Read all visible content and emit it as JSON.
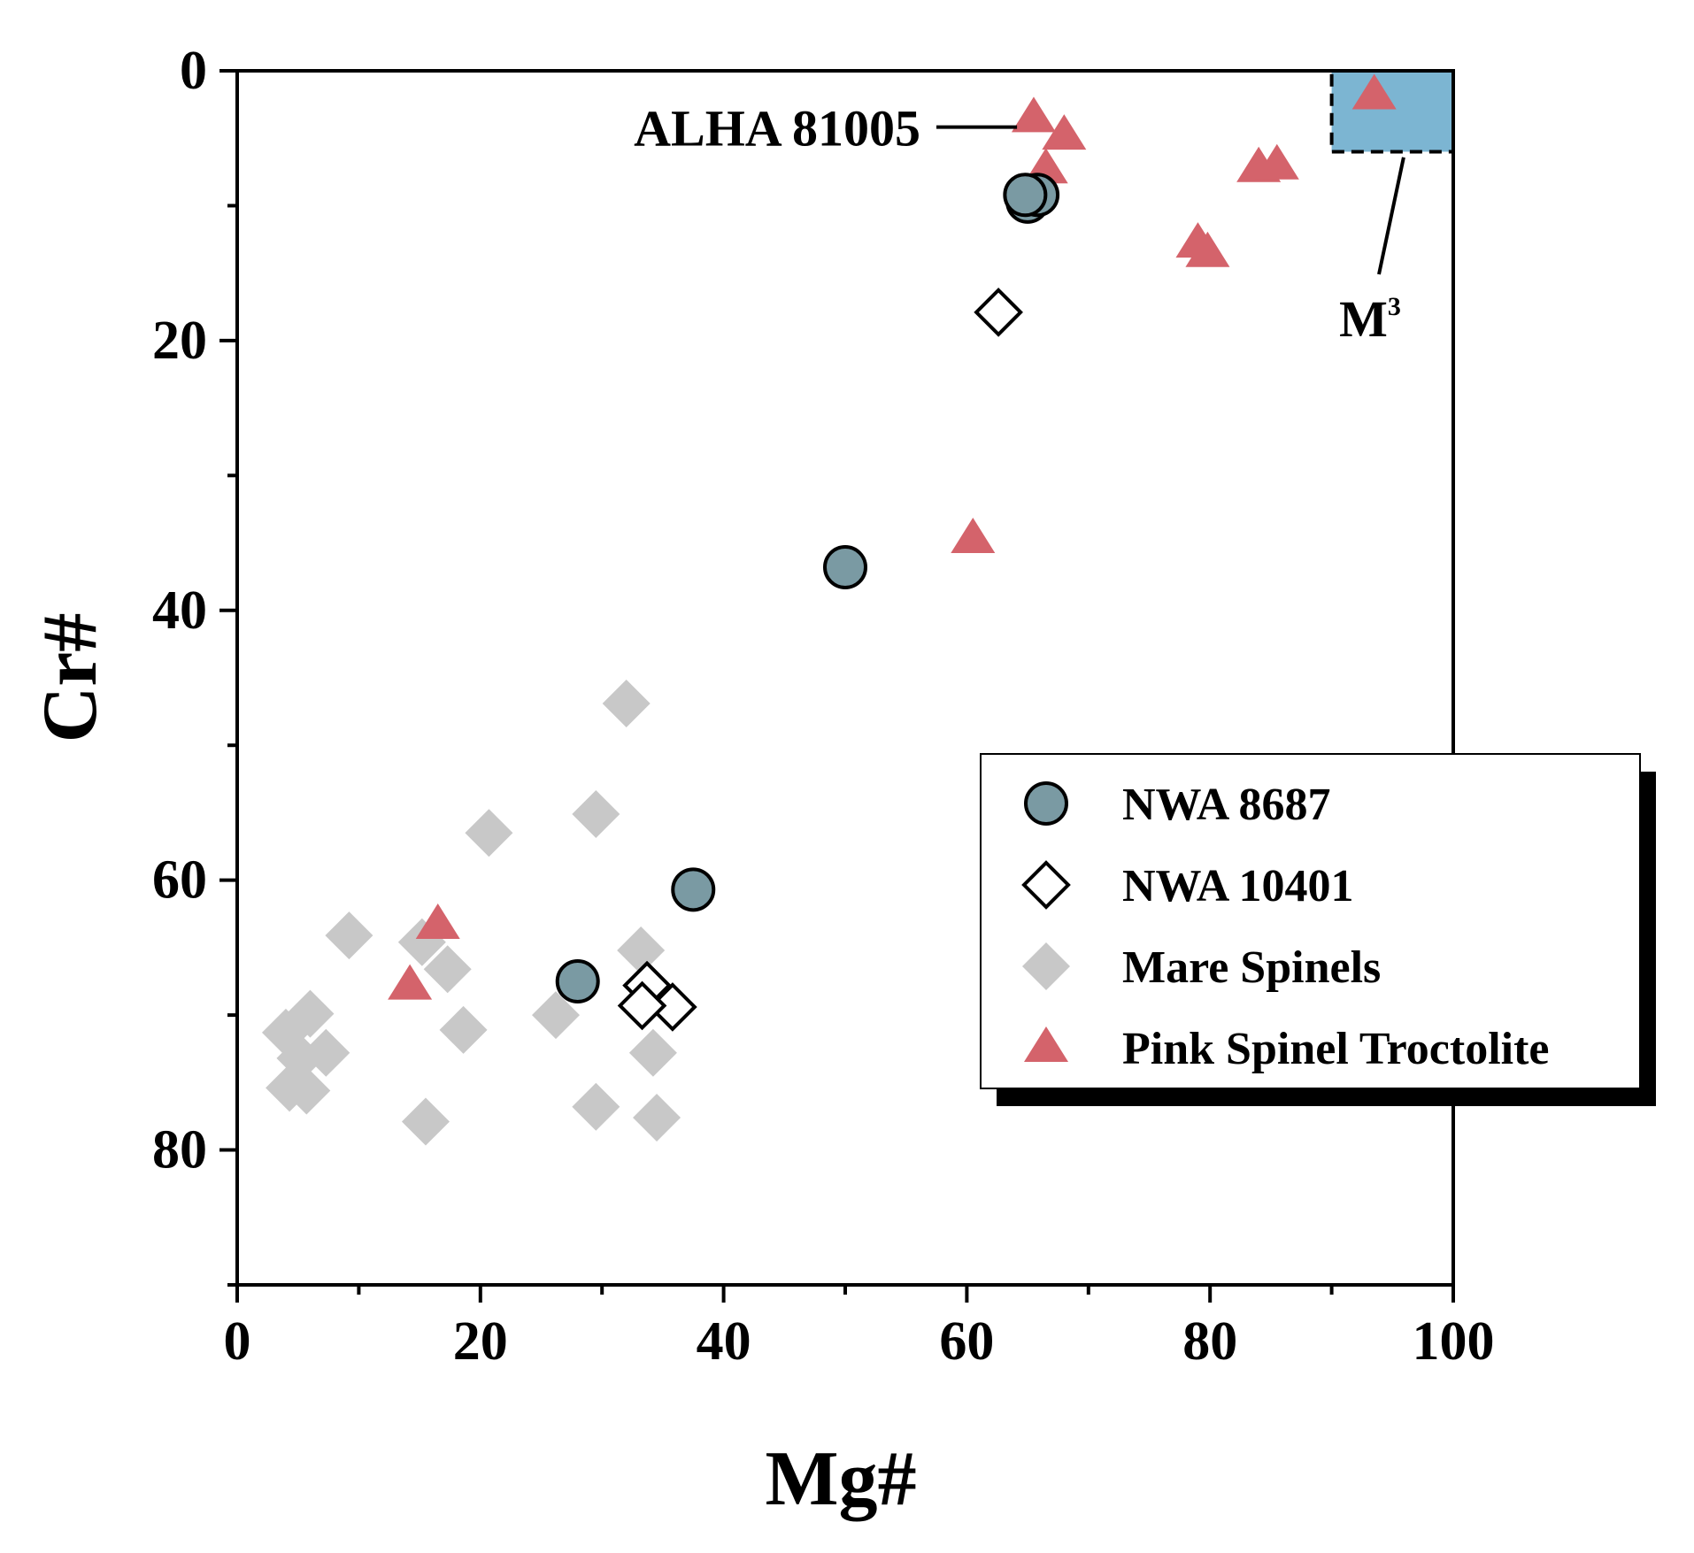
{
  "chart_data": {
    "type": "scatter",
    "title": "",
    "xlabel": "Mg#",
    "ylabel": "Cr#",
    "xlim": [
      0,
      100
    ],
    "ylim": [
      0,
      90
    ],
    "y_inverted": true,
    "x_ticks": [
      0,
      20,
      40,
      60,
      80,
      100
    ],
    "x_tick_labels": [
      "0",
      "20",
      "40",
      "60",
      "80",
      "100"
    ],
    "y_ticks": [
      0,
      20,
      40,
      60,
      80
    ],
    "y_tick_labels": [
      "0",
      "20",
      "40",
      "60",
      "80"
    ],
    "grid": false,
    "legend_position": "right",
    "series": [
      {
        "name": "NWA 8687",
        "marker": "circle",
        "color": "#7a9aa3",
        "points": [
          [
            28,
            67.5
          ],
          [
            37.5,
            60.7
          ],
          [
            50,
            36.8
          ],
          [
            65,
            9.7
          ],
          [
            65.8,
            9.2
          ],
          [
            64.8,
            9.2
          ]
        ]
      },
      {
        "name": "NWA 10401",
        "marker": "diamond-open",
        "color": "#ffffff",
        "points": [
          [
            62.6,
            17.9
          ],
          [
            33.7,
            67.8
          ],
          [
            35.8,
            69.4
          ],
          [
            33.3,
            69.3
          ]
        ]
      },
      {
        "name": "Mare Spinels",
        "marker": "diamond",
        "color": "#c8c8c8",
        "points": [
          [
            32,
            46.9
          ],
          [
            29.5,
            55.1
          ],
          [
            20.7,
            56.5
          ],
          [
            9.2,
            64.1
          ],
          [
            15.2,
            64.6
          ],
          [
            17.3,
            66.6
          ],
          [
            33.2,
            65.2
          ],
          [
            26.2,
            70.0
          ],
          [
            18.6,
            71.1
          ],
          [
            4,
            71.3
          ],
          [
            6,
            69.9
          ],
          [
            7.3,
            72.8
          ],
          [
            5.2,
            73.2
          ],
          [
            4.3,
            75.4
          ],
          [
            5.7,
            75.6
          ],
          [
            34.2,
            72.8
          ],
          [
            29.5,
            76.8
          ],
          [
            15.5,
            77.9
          ],
          [
            34.5,
            77.6
          ]
        ]
      },
      {
        "name": "Pink Spinel Troctolite",
        "marker": "triangle",
        "color": "#d4636b",
        "points": [
          [
            93.5,
            1.8
          ],
          [
            65.5,
            3.5
          ],
          [
            68,
            4.8
          ],
          [
            66.5,
            7.3
          ],
          [
            84,
            7.2
          ],
          [
            85.5,
            7.0
          ],
          [
            79,
            12.8
          ],
          [
            79.8,
            13.5
          ],
          [
            60.5,
            34.7
          ],
          [
            16.5,
            63.3
          ],
          [
            14.2,
            67.8
          ]
        ]
      }
    ],
    "annotations": [
      {
        "text": "ALHA 81005",
        "target": [
          65,
          4.5
        ]
      },
      {
        "text": "M",
        "superscript": "3",
        "target": [
          96.5,
          5.5
        ]
      }
    ],
    "shaded_region": {
      "label": "M3",
      "x": [
        90,
        100
      ],
      "y": [
        0,
        6
      ],
      "color": "#7cb5d2"
    }
  }
}
